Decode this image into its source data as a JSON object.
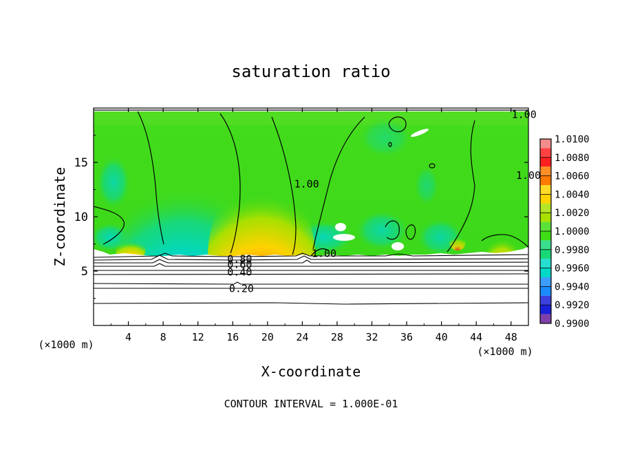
{
  "chart_data": {
    "type": "heatmap",
    "title": "saturation ratio",
    "xlabel": "X-coordinate",
    "ylabel": "Z-coordinate",
    "x_unit": "(×1000 m)",
    "xlim": [
      0,
      50
    ],
    "ylim": [
      0,
      20
    ],
    "x_ticks": [
      4,
      8,
      12,
      16,
      20,
      24,
      28,
      32,
      36,
      40,
      44,
      48
    ],
    "y_ticks": [
      5,
      10,
      15
    ],
    "footer": "CONTOUR INTERVAL = 1.000E-01",
    "colorbar": {
      "levels": [
        1.01,
        1.008,
        1.006,
        1.004,
        1.002,
        1.0,
        0.998,
        0.996,
        0.994,
        0.992,
        0.99
      ],
      "labels": [
        "1.0100",
        "1.0080",
        "1.0060",
        "1.0040",
        "1.0020",
        "1.0000",
        "0.9980",
        "0.9960",
        "0.9940",
        "0.9920",
        "0.9900"
      ],
      "colors": [
        "#f58c8c",
        "#ff2020",
        "#ff7a00",
        "#ffd200",
        "#a8e000",
        "#3fdc18",
        "#18d878",
        "#00d8c8",
        "#1a8cff",
        "#1a20d8",
        "#6a1e9a"
      ]
    },
    "contour_labels": [
      {
        "text": "1.00",
        "x": 24.5,
        "y": 13.0
      },
      {
        "text": "1.00",
        "x": 49.5,
        "y": 19.4
      },
      {
        "text": "1.00",
        "x": 26.5,
        "y": 6.6
      },
      {
        "text": "1.00",
        "x": 69.7,
        "y": 13.8
      },
      {
        "text": "0.80",
        "x": 16.8,
        "y": 6.1
      },
      {
        "text": "0.60",
        "x": 16.8,
        "y": 5.6
      },
      {
        "text": "0.40",
        "x": 16.8,
        "y": 4.9
      },
      {
        "text": "0.20",
        "x": 17.0,
        "y": 3.4
      }
    ],
    "contour_levels_below": [
      0.2,
      0.4,
      0.6,
      0.8
    ]
  }
}
